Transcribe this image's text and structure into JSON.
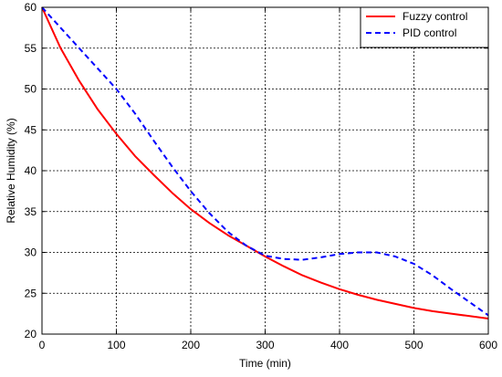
{
  "chart_data": {
    "type": "line",
    "title": "",
    "xlabel": "Time (min)",
    "ylabel": "Relative Humidity (%)",
    "xlim": [
      0,
      600
    ],
    "ylim": [
      20,
      60
    ],
    "xticks": [
      0,
      100,
      200,
      300,
      400,
      500,
      600
    ],
    "yticks": [
      20,
      25,
      30,
      35,
      40,
      45,
      50,
      55,
      60
    ],
    "grid": true,
    "legend_position": "top-right",
    "series": [
      {
        "name": "Fuzzy control",
        "color": "#ff0000",
        "style": "solid",
        "x": [
          0,
          25,
          50,
          75,
          100,
          125,
          150,
          175,
          200,
          225,
          250,
          275,
          300,
          325,
          350,
          375,
          400,
          425,
          450,
          475,
          500,
          525,
          550,
          575,
          600
        ],
        "y": [
          60,
          55,
          51,
          47.5,
          44.5,
          41.8,
          39.5,
          37.3,
          35.3,
          33.6,
          32.1,
          30.8,
          29.5,
          28.3,
          27.2,
          26.3,
          25.5,
          24.8,
          24.2,
          23.7,
          23.2,
          22.8,
          22.5,
          22.2,
          21.9
        ]
      },
      {
        "name": "PID control",
        "color": "#0000ff",
        "style": "dashed",
        "x": [
          0,
          25,
          50,
          75,
          100,
          125,
          150,
          175,
          200,
          225,
          250,
          275,
          300,
          325,
          350,
          375,
          400,
          425,
          450,
          475,
          500,
          525,
          550,
          575,
          600
        ],
        "y": [
          60,
          57.5,
          55,
          52.5,
          50,
          47,
          43.7,
          40.5,
          37.5,
          34.8,
          32.5,
          30.8,
          29.6,
          29.2,
          29.1,
          29.4,
          29.8,
          30,
          30,
          29.5,
          28.6,
          27.2,
          25.5,
          23.9,
          22.3
        ]
      }
    ]
  }
}
